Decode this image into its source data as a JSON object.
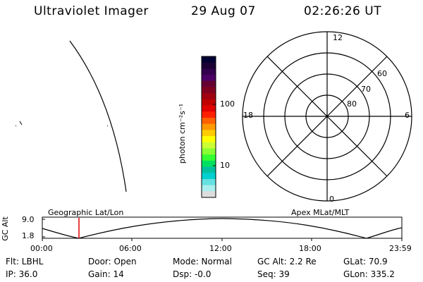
{
  "header": {
    "title": "Ultraviolet Imager",
    "date": "29 Aug 07",
    "time": "02:26:26 UT"
  },
  "colorbar": {
    "unit_label": "photon cm⁻²s⁻¹",
    "ticks": [
      "100",
      "10"
    ],
    "colors": [
      "#000033",
      "#1a0033",
      "#33004d",
      "#4d0066",
      "#660033",
      "#800020",
      "#a00010",
      "#c00000",
      "#e00000",
      "#ff2000",
      "#ff6000",
      "#ff9900",
      "#ffcc00",
      "#ffff00",
      "#ccff33",
      "#88ff33",
      "#33ff33",
      "#00e060",
      "#00c0a0",
      "#00d0d0",
      "#66e0e0",
      "#aaeeee",
      "#dddddd"
    ]
  },
  "polar_plot": {
    "outer_labels": [
      "12",
      "6",
      "0",
      "18"
    ],
    "ring_labels": [
      "60",
      "70",
      "80"
    ]
  },
  "timeline": {
    "y_axis_label": "GC Alt",
    "y_values": [
      "9.0",
      "1.8"
    ],
    "left_label": "Geographic Lat/Lon",
    "right_label": "Apex MLat/MLT",
    "x_ticks": [
      "00:00",
      "06:00",
      "12:00",
      "18:00",
      "23:59"
    ],
    "marker_time": "02:26",
    "marker_color": "#e00000"
  },
  "info": {
    "filter": "Flt: LBHL",
    "door": "Door: Open",
    "mode": "Mode: Normal",
    "gc_alt": "GC Alt: 2.2 Re",
    "glat": "GLat:  70.9",
    "ip": "IP: 36.0",
    "gain": "Gain: 14",
    "dsp": "Dsp:   -0.0",
    "seq": "Seq: 39",
    "glon": "GLon: 335.2"
  }
}
